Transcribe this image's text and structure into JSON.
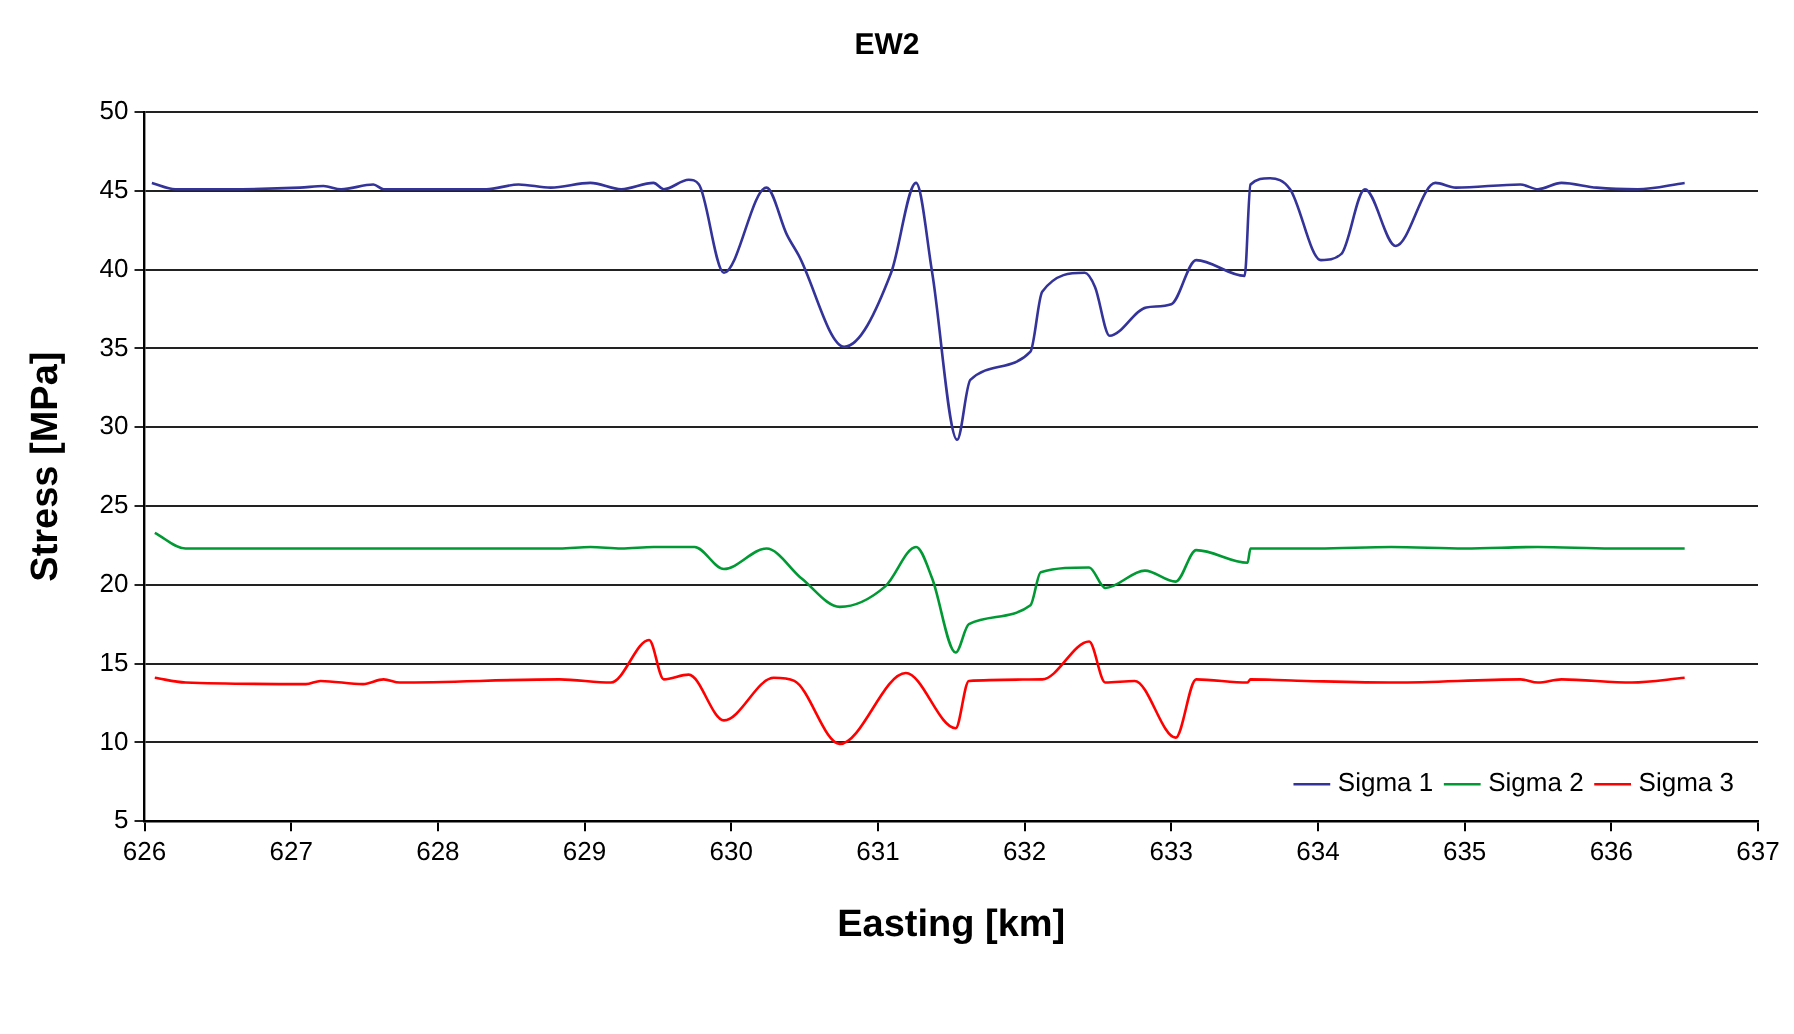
{
  "chart_data": {
    "type": "line",
    "title": "EW2",
    "xlabel": "Easting [km]",
    "ylabel": "Stress [MPa]",
    "xlim": [
      626,
      637
    ],
    "xticks": [
      626,
      627,
      628,
      629,
      630,
      631,
      632,
      633,
      634,
      635,
      636,
      637
    ],
    "ylim": [
      5,
      50
    ],
    "yticks": [
      5,
      10,
      15,
      20,
      25,
      30,
      35,
      40,
      45,
      50
    ],
    "grid": "y",
    "legend": "bottom right",
    "marker": "none",
    "line_style": "solid",
    "x": [
      626.05,
      626.21,
      626.57,
      627.06,
      627.22,
      627.34,
      627.56,
      627.63,
      628.33,
      628.55,
      628.77,
      629.04,
      629.25,
      629.47,
      629.54,
      629.71,
      629.78,
      629.95,
      630.24,
      630.38,
      630.46,
      630.77,
      631.09,
      631.26,
      631.37,
      631.54,
      631.63,
      632.04,
      632.12,
      632.41,
      632.48,
      632.58,
      632.83,
      633.0,
      633.17,
      633.5,
      633.54,
      633.67,
      633.81,
      634.02,
      634.16,
      634.32,
      634.53,
      634.8,
      634.94,
      635.38,
      635.5,
      635.66,
      635.9,
      636.18,
      636.5
    ],
    "series": [
      {
        "name": "Sigma 1",
        "color": "#333399",
        "values": [
          45.5,
          45.1,
          45.1,
          45.2,
          45.3,
          45.1,
          45.4,
          45.1,
          45.1,
          45.4,
          45.2,
          45.5,
          45.1,
          45.5,
          45.1,
          45.7,
          45.4,
          39.8,
          45.2,
          42.2,
          40.9,
          35.1,
          39.8,
          45.5,
          39.8,
          29.2,
          33.0,
          34.8,
          38.6,
          39.8,
          38.9,
          35.8,
          37.6,
          37.8,
          40.6,
          39.6,
          45.4,
          45.8,
          45.1,
          40.6,
          41.0,
          45.1,
          41.5,
          45.5,
          45.2,
          45.4,
          45.1,
          45.5,
          45.2,
          45.1,
          45.5
        ]
      },
      {
        "name": "Sigma 2",
        "color": "#009933",
        "x": [
          626.07,
          626.28,
          627.2,
          628.0,
          628.83,
          629.04,
          629.25,
          629.47,
          629.75,
          629.95,
          630.24,
          630.48,
          630.74,
          631.05,
          631.26,
          631.37,
          631.53,
          631.62,
          632.04,
          632.11,
          632.44,
          632.55,
          632.82,
          633.03,
          633.17,
          633.52,
          633.54,
          634.0,
          634.5,
          635.0,
          635.5,
          636.0,
          636.5
        ],
        "values": [
          23.3,
          22.3,
          22.3,
          22.3,
          22.3,
          22.4,
          22.3,
          22.4,
          22.4,
          21.0,
          22.3,
          20.4,
          18.6,
          19.9,
          22.4,
          20.4,
          15.7,
          17.5,
          18.7,
          20.8,
          21.1,
          19.8,
          20.9,
          20.2,
          22.2,
          21.4,
          22.3,
          22.3,
          22.4,
          22.3,
          22.4,
          22.3,
          22.3
        ]
      },
      {
        "name": "Sigma 3",
        "color": "#ff0000",
        "x": [
          626.07,
          626.28,
          627.1,
          627.2,
          627.49,
          627.63,
          627.74,
          628.83,
          629.18,
          629.44,
          629.54,
          629.71,
          629.95,
          630.29,
          630.43,
          630.74,
          631.19,
          631.53,
          631.62,
          632.12,
          632.44,
          632.55,
          632.75,
          633.03,
          633.17,
          633.52,
          633.54,
          633.92,
          634.53,
          635.38,
          635.5,
          635.66,
          636.14,
          636.5
        ],
        "values": [
          14.1,
          13.8,
          13.7,
          13.9,
          13.7,
          14.0,
          13.8,
          14.0,
          13.8,
          16.5,
          14.0,
          14.3,
          11.4,
          14.1,
          13.9,
          9.9,
          14.4,
          10.9,
          13.9,
          14.0,
          16.4,
          13.8,
          13.9,
          10.3,
          14.0,
          13.8,
          14.0,
          13.9,
          13.8,
          14.0,
          13.8,
          14.0,
          13.8,
          14.1
        ]
      }
    ]
  }
}
